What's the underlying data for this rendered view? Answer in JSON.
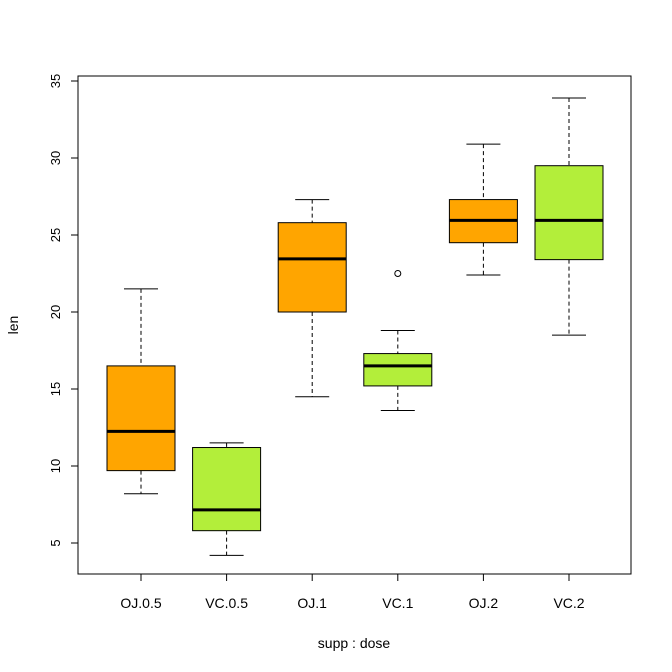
{
  "chart_data": {
    "type": "box",
    "xlabel": "supp : dose",
    "ylabel": "len",
    "ylim": [
      3,
      35
    ],
    "yticks": [
      5,
      10,
      15,
      20,
      25,
      30,
      35
    ],
    "colors": {
      "OJ": "#FFA500",
      "VC": "#B3EE3A"
    },
    "boxes": [
      {
        "label": "OJ.0.5",
        "group": "OJ",
        "whisker_low": 8.2,
        "q1": 9.7,
        "median": 12.25,
        "q3": 16.5,
        "whisker_high": 21.5,
        "outliers": []
      },
      {
        "label": "VC.0.5",
        "group": "VC",
        "whisker_low": 4.2,
        "q1": 5.8,
        "median": 7.15,
        "q3": 11.2,
        "whisker_high": 11.5,
        "outliers": []
      },
      {
        "label": "OJ.1",
        "group": "OJ",
        "whisker_low": 14.5,
        "q1": 20.0,
        "median": 23.45,
        "q3": 25.8,
        "whisker_high": 27.3,
        "outliers": []
      },
      {
        "label": "VC.1",
        "group": "VC",
        "whisker_low": 13.6,
        "q1": 15.2,
        "median": 16.5,
        "q3": 17.3,
        "whisker_high": 18.8,
        "outliers": [
          22.5
        ]
      },
      {
        "label": "OJ.2",
        "group": "OJ",
        "whisker_low": 22.4,
        "q1": 24.5,
        "median": 25.95,
        "q3": 27.3,
        "whisker_high": 30.9,
        "outliers": []
      },
      {
        "label": "VC.2",
        "group": "VC",
        "whisker_low": 18.5,
        "q1": 23.4,
        "median": 25.95,
        "q3": 29.5,
        "whisker_high": 33.9,
        "outliers": []
      }
    ]
  }
}
